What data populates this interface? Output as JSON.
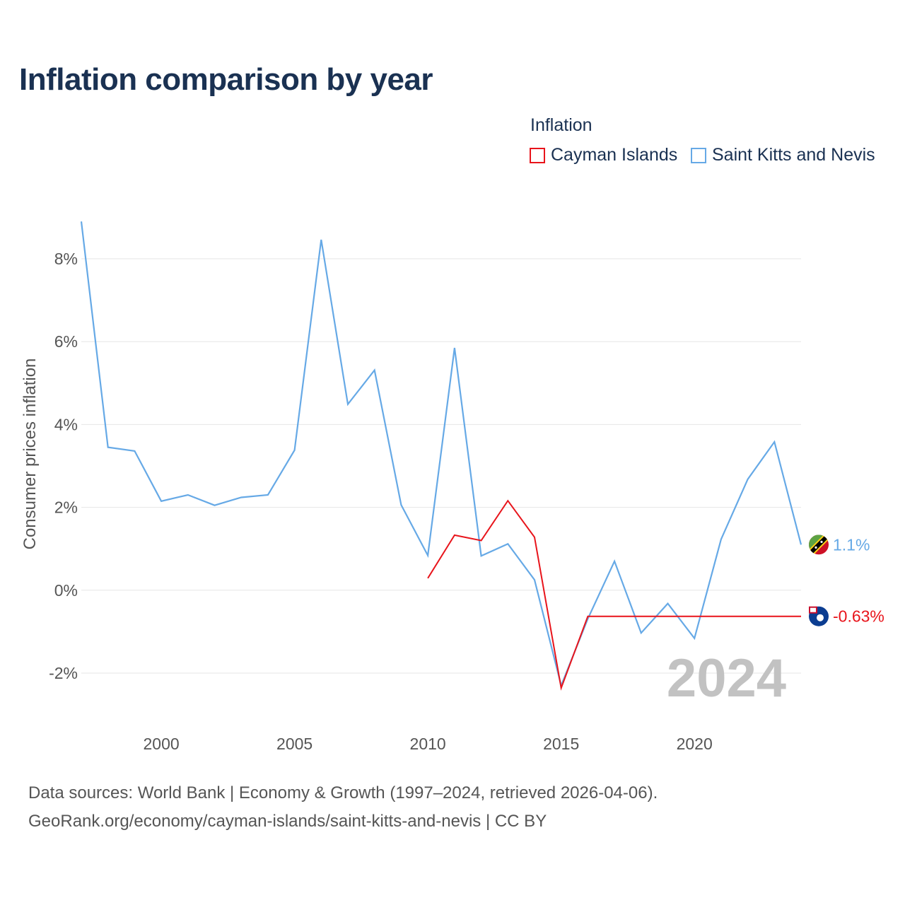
{
  "header": {
    "title": "Inflation comparison by year"
  },
  "legend": {
    "title": "Inflation",
    "items": [
      {
        "label": "Cayman Islands",
        "color": "#e8141b"
      },
      {
        "label": "Saint Kitts and Nevis",
        "color": "#66a9e6"
      }
    ]
  },
  "footer": {
    "line1": "Data sources: World Bank | Economy & Growth (1997–2024, retrieved 2026-04-06).",
    "line2": "GeoRank.org/economy/cayman-islands/saint-kitts-and-nevis | CC BY"
  },
  "chart_data": {
    "type": "line",
    "title": "Inflation comparison by year",
    "ylabel": "Consumer prices inflation",
    "xlabel": "",
    "current_year": "2024",
    "xlim": [
      1997,
      2024
    ],
    "ylim": [
      -3,
      9
    ],
    "x_ticks": [
      2000,
      2005,
      2010,
      2015,
      2020
    ],
    "y_ticks": [
      {
        "value": 8,
        "label": "8%"
      },
      {
        "value": 6,
        "label": "6%"
      },
      {
        "value": 4,
        "label": "4%"
      },
      {
        "value": 2,
        "label": "2%"
      },
      {
        "value": 0,
        "label": "0%"
      },
      {
        "value": -2,
        "label": "-2%"
      }
    ],
    "series": [
      {
        "name": "Saint Kitts and Nevis",
        "color": "#66a9e6",
        "end_label": "1.1%",
        "flag": "saint-kitts-and-nevis-flag-icon",
        "x": [
          1997,
          1998,
          1999,
          2000,
          2001,
          2002,
          2003,
          2004,
          2005,
          2006,
          2007,
          2008,
          2009,
          2010,
          2011,
          2012,
          2013,
          2014,
          2015,
          2016,
          2017,
          2018,
          2019,
          2020,
          2021,
          2022,
          2023,
          2024
        ],
        "values": [
          8.9,
          3.45,
          3.36,
          2.15,
          2.3,
          2.05,
          2.24,
          2.3,
          3.38,
          8.46,
          4.49,
          5.31,
          2.06,
          0.84,
          5.85,
          0.83,
          1.12,
          0.25,
          -2.3,
          -0.69,
          0.7,
          -1.03,
          -0.32,
          -1.16,
          1.23,
          2.68,
          3.58,
          1.1
        ]
      },
      {
        "name": "Cayman Islands",
        "color": "#e8141b",
        "end_label": "-0.63%",
        "flag": "cayman-islands-flag-icon",
        "x": [
          2010,
          2011,
          2012,
          2013,
          2014,
          2015,
          2016,
          2017,
          2018,
          2019,
          2020,
          2021,
          2022,
          2023,
          2024
        ],
        "values": [
          0.29,
          1.33,
          1.2,
          2.16,
          1.28,
          -2.36,
          -0.63,
          -0.63,
          -0.63,
          -0.63,
          -0.63,
          -0.63,
          -0.63,
          -0.63,
          -0.63
        ]
      }
    ]
  }
}
